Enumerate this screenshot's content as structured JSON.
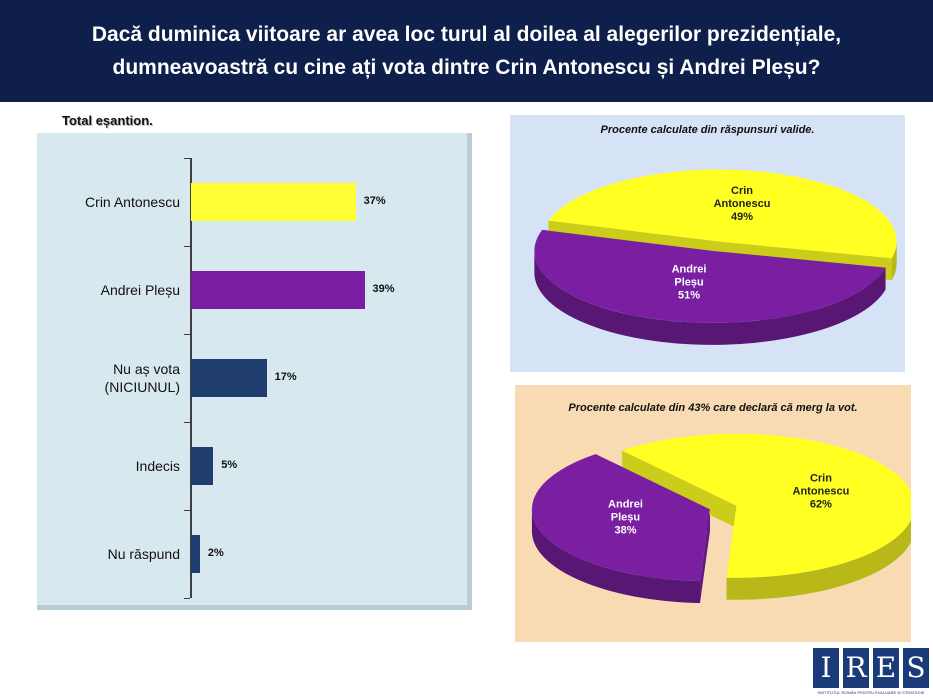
{
  "header": {
    "title_line1": "Dacă duminica viitoare ar avea loc turul al doilea al alegerilor prezidențiale,",
    "title_line2": "dumneavoastră cu cine ați vota dintre Crin Antonescu și Andrei Pleșu?"
  },
  "chart_data": [
    {
      "type": "bar",
      "orientation": "horizontal",
      "title": "Total eșantion.",
      "categories": [
        "Crin Antonescu",
        "Andrei Pleșu",
        "Nu aș vota (NICIUNUL)",
        "Indecis",
        "Nu răspund"
      ],
      "category_lines": [
        [
          "Crin Antonescu"
        ],
        [
          "Andrei Pleșu"
        ],
        [
          "Nu aș vota",
          "(NICIUNUL)"
        ],
        [
          "Indecis"
        ],
        [
          "Nu răspund"
        ]
      ],
      "values": [
        37,
        39,
        17,
        5,
        2
      ],
      "value_labels": [
        "37%",
        "39%",
        "17%",
        "5%",
        "2%"
      ],
      "colors": [
        "#ffff33",
        "#7a1fa2",
        "#1f3d6e",
        "#1f3d6e",
        "#1f3d6e"
      ],
      "unit": "%"
    },
    {
      "type": "pie",
      "title": "Procente calculate din răspunsuri valide.",
      "slices": [
        {
          "label_lines": [
            "Crin",
            "Antonescu",
            "49%"
          ],
          "value": 49,
          "color": "#ffff22"
        },
        {
          "label_lines": [
            "Andrei",
            "Pleșu",
            "51%"
          ],
          "value": 51,
          "color": "#7a1fa2"
        }
      ]
    },
    {
      "type": "pie",
      "title": "Procente calculate din 43% care declară că merg la vot.",
      "slices": [
        {
          "label_lines": [
            "Crin",
            "Antonescu",
            "62%"
          ],
          "value": 62,
          "color": "#ffff22"
        },
        {
          "label_lines": [
            "Andrei",
            "Pleșu",
            "38%"
          ],
          "value": 38,
          "color": "#7a1fa2"
        }
      ]
    }
  ],
  "logo": {
    "letters": [
      "I",
      "R",
      "E",
      "S"
    ],
    "subtitle": "INSTITUTUL ROMÂN PENTRU EVALUARE ȘI STRATEGIE"
  }
}
